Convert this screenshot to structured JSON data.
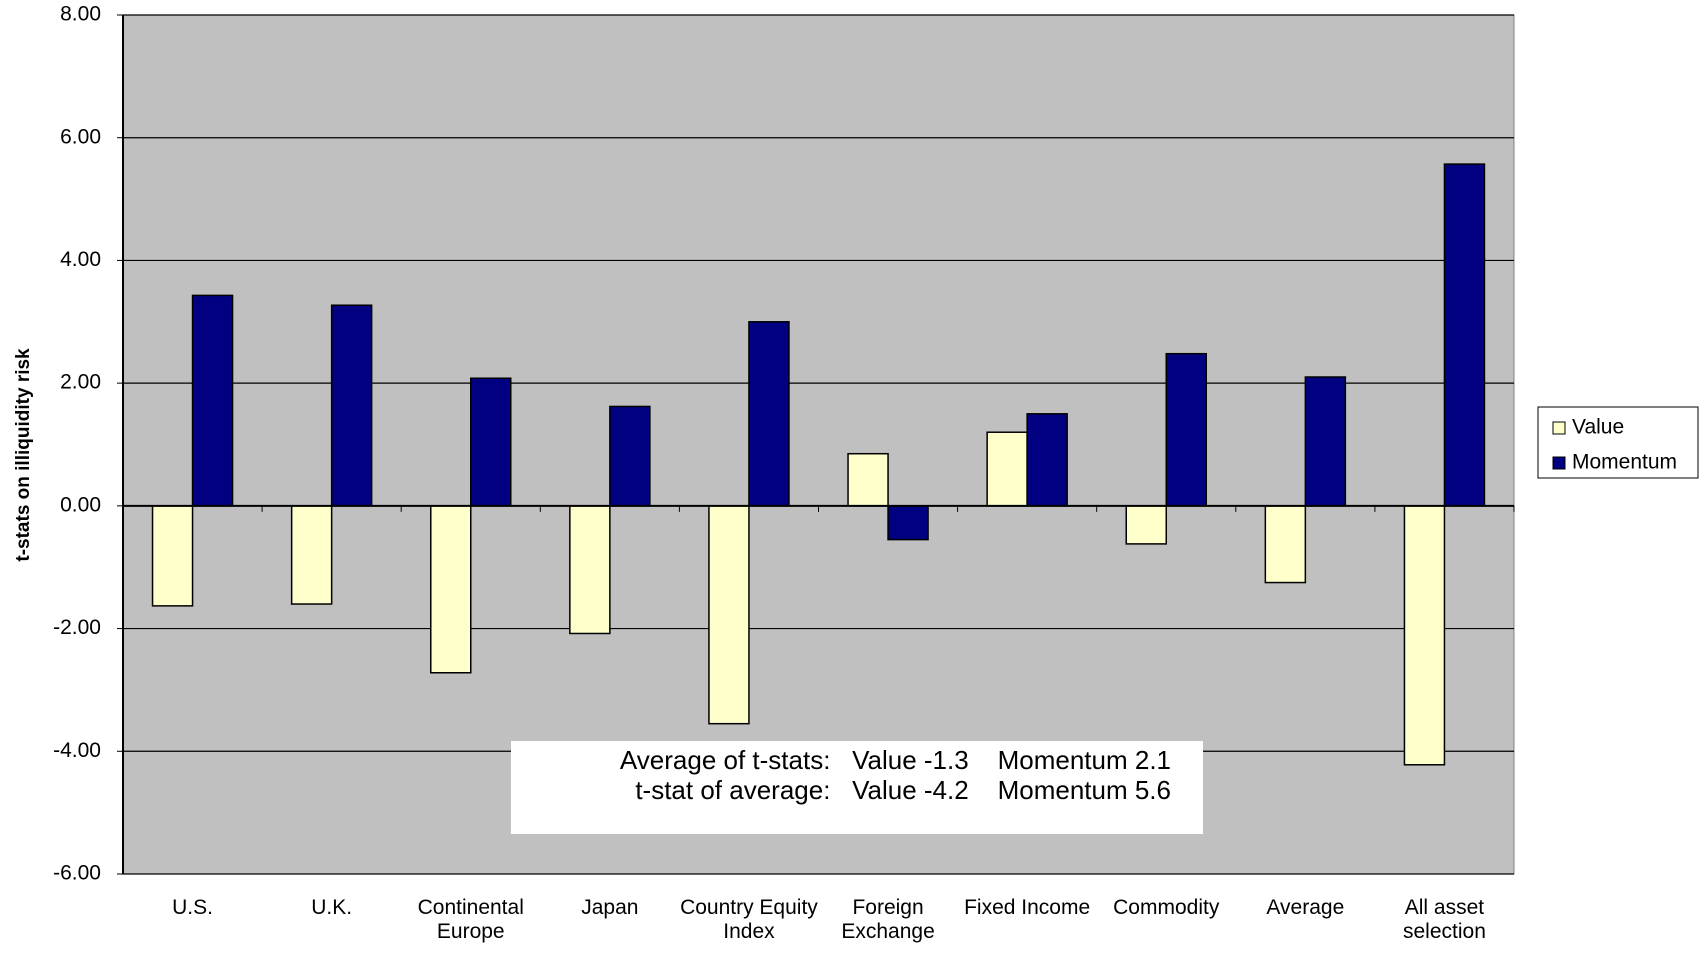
{
  "chart_data": {
    "type": "bar",
    "y_label": "t-stats on illiquidity risk",
    "categories": [
      "U.S.",
      "U.K.",
      "Continental Europe",
      "Japan",
      "Country Equity Index",
      "Foreign Exchange",
      "Fixed Income",
      "Commodity",
      "Average",
      "All asset selection"
    ],
    "series": [
      {
        "name": "Value",
        "color": "#ffffcc",
        "values": [
          -1.63,
          -1.6,
          -2.72,
          -2.08,
          -3.55,
          0.85,
          1.2,
          -0.62,
          -1.25,
          -4.22
        ]
      },
      {
        "name": "Momentum",
        "color": "#000080",
        "values": [
          3.43,
          3.27,
          2.08,
          1.62,
          3.0,
          -0.55,
          1.5,
          2.48,
          2.1,
          5.57
        ]
      }
    ],
    "ylim": [
      -6,
      8
    ],
    "yticks": [
      {
        "value": -6,
        "label": "-6.00"
      },
      {
        "value": -4,
        "label": "-4.00"
      },
      {
        "value": -2,
        "label": "-2.00"
      },
      {
        "value": 0,
        "label": "0.00"
      },
      {
        "value": 2,
        "label": "2.00"
      },
      {
        "value": 4,
        "label": "4.00"
      },
      {
        "value": 6,
        "label": "6.00"
      },
      {
        "value": 8,
        "label": "8.00"
      }
    ],
    "grid": true,
    "legend": "right",
    "annotations": [
      "Average of t-stats:   Value -1.3    Momentum 2.1",
      "t-stat of average:   Value -4.2    Momentum 5.6"
    ]
  }
}
